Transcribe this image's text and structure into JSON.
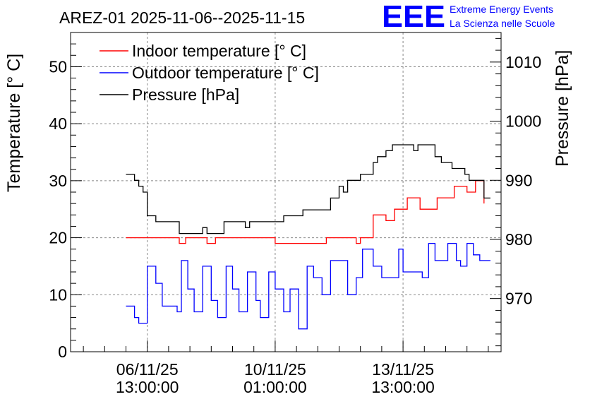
{
  "chart_data": {
    "type": "line",
    "title": "AREZ-01 2025-11-06--2025-11-15",
    "ylabel": "Temperature [° C]",
    "y2label": "Pressure [hPa]",
    "ylim": [
      0,
      56
    ],
    "y2lim": [
      961,
      1015
    ],
    "yticks": [
      0,
      10,
      20,
      30,
      40,
      50
    ],
    "yticklabels": [
      "0",
      "10",
      "20",
      "30",
      "40",
      "50"
    ],
    "y2ticks": [
      970,
      980,
      990,
      1000,
      1010
    ],
    "y2ticklabels": [
      "970",
      "980",
      "990",
      "1000",
      "1010"
    ],
    "xlim": [
      -1.8,
      8.3
    ],
    "xticks": [
      0,
      3,
      6
    ],
    "xticklabels": [
      {
        "date": "06/11/25",
        "time": "13:00:00"
      },
      {
        "date": "10/11/25",
        "time": "01:00:00"
      },
      {
        "date": "13/11/25",
        "time": "13:00:00"
      }
    ],
    "grid": true,
    "legend_position": "top-left",
    "series": [
      {
        "name": "Indoor temperature [° C]",
        "axis": "left",
        "color": "#ff0000",
        "x": [
          -0.5,
          0,
          0.3,
          0.6,
          0.75,
          0.9,
          1.3,
          1.4,
          1.6,
          2.0,
          2.3,
          2.6,
          3.0,
          3.3,
          3.6,
          3.8,
          4.0,
          4.2,
          4.5,
          4.9,
          5.0,
          5.2,
          5.3,
          5.5,
          5.6,
          5.8,
          6.1,
          6.4,
          6.8,
          7.2,
          7.5,
          7.7,
          7.9
        ],
        "values": [
          20,
          20,
          20,
          20,
          19,
          20,
          20,
          19,
          20,
          20,
          20,
          20,
          19,
          19,
          19,
          19,
          19,
          20,
          20,
          19,
          20,
          20,
          24,
          24,
          23,
          25,
          27,
          25,
          27,
          29,
          28,
          30,
          26
        ]
      },
      {
        "name": "Outdoor temperature [° C]",
        "axis": "left",
        "color": "#0000ff",
        "x": [
          -0.5,
          -0.3,
          -0.2,
          0,
          0.2,
          0.35,
          0.5,
          0.7,
          0.8,
          0.95,
          1.1,
          1.3,
          1.5,
          1.65,
          1.85,
          2.0,
          2.15,
          2.35,
          2.55,
          2.65,
          2.85,
          3.0,
          3.2,
          3.35,
          3.55,
          3.75,
          3.9,
          4.1,
          4.3,
          4.5,
          4.7,
          4.9,
          5.05,
          5.3,
          5.5,
          5.7,
          5.9,
          6.0,
          6.15,
          6.3,
          6.45,
          6.6,
          6.75,
          6.85,
          7.05,
          7.25,
          7.35,
          7.5,
          7.65,
          7.8,
          7.9,
          8.05
        ],
        "values": [
          8,
          6,
          5,
          15,
          12,
          8,
          8,
          7,
          16,
          11,
          7,
          15,
          9,
          6,
          15,
          11,
          7,
          14,
          9,
          6,
          14,
          11,
          7,
          11,
          4,
          15,
          13,
          10,
          16,
          16,
          10,
          13,
          18,
          15,
          13,
          13,
          18,
          14,
          14,
          14,
          13,
          19,
          16,
          16,
          19,
          16,
          15,
          19,
          17,
          16,
          16,
          16
        ]
      },
      {
        "name": "Pressure [hPa]",
        "axis": "right",
        "color": "#000000",
        "x": [
          -0.5,
          -0.3,
          -0.2,
          -0.1,
          0,
          0.2,
          0.35,
          0.6,
          0.75,
          0.9,
          1.3,
          1.4,
          1.6,
          1.8,
          2.0,
          2.1,
          2.3,
          2.4,
          2.6,
          2.75,
          2.9,
          3.2,
          3.5,
          3.65,
          3.9,
          4.3,
          4.5,
          4.6,
          4.7,
          4.9,
          5.0,
          5.1,
          5.15,
          5.3,
          5.4,
          5.6,
          5.75,
          5.9,
          6.0,
          6.25,
          6.35,
          6.6,
          6.75,
          6.9,
          7.05,
          7.15,
          7.35,
          7.45,
          7.55,
          7.7,
          7.9,
          8.05
        ],
        "values": [
          991,
          990,
          989,
          988,
          984,
          983,
          983,
          983,
          981,
          981,
          982,
          981,
          981,
          983,
          983,
          983,
          982,
          983,
          983,
          983,
          983,
          984,
          984,
          985,
          985,
          987,
          989,
          988,
          990,
          990,
          991,
          991,
          991,
          993,
          994,
          995,
          996,
          996,
          996,
          995,
          996,
          996,
          994,
          993,
          993,
          992,
          992,
          991,
          990,
          990,
          987,
          987
        ]
      }
    ]
  },
  "logo": {
    "text": "EEE",
    "line1": "Extreme Energy Events",
    "line2": "La Scienza nelle Scuole",
    "color": "#0000ff"
  }
}
